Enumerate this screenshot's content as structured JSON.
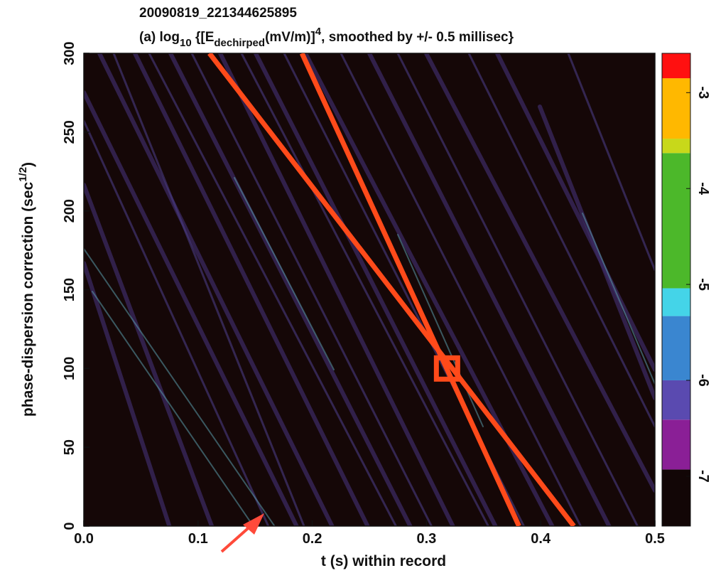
{
  "chart_data": {
    "type": "heatmap",
    "title": "20090819_221344625895",
    "subtitle_parts": [
      "(a) log",
      "10",
      " {[E",
      "dechirped",
      "(mV/m)]",
      "4",
      ", smoothed by +/- 0.5 millisec}"
    ],
    "x_label": "t (s) within record",
    "y_label_parts": [
      "phase-dispersion correction (sec",
      "1/2",
      ")"
    ],
    "xlim": [
      0,
      0.5
    ],
    "xticks": [
      {
        "value": 0,
        "label": "0.0"
      },
      0.1,
      0.2,
      0.3,
      0.4,
      0.5
    ],
    "ylim": [
      0,
      300
    ],
    "yticks": [
      0,
      50,
      100,
      150,
      200,
      250,
      300
    ],
    "overlays": [
      {
        "x": [
          0.11,
          0.429
        ],
        "y": [
          300,
          0
        ],
        "color": "#ff4a1a"
      },
      {
        "x": [
          0.191,
          0.381
        ],
        "y": [
          300,
          0
        ],
        "color": "#ff4a1a"
      }
    ],
    "marker": {
      "x": 0.318,
      "y": 100,
      "color": "#ff4a1a"
    },
    "colorbar": {
      "lim": [
        -7.52,
        -2.59
      ],
      "ticks": [
        -3,
        -4,
        -5,
        -6,
        -7
      ],
      "bands": [
        {
          "range": [
            -7.52,
            -6.93
          ],
          "color": "#120606"
        },
        {
          "range": [
            -6.93,
            -6.41
          ],
          "color": "#8a1f96"
        },
        {
          "range": [
            -6.41,
            -6.0
          ],
          "color": "#5a4ab0"
        },
        {
          "range": [
            -6.0,
            -5.33
          ],
          "color": "#3a86d0"
        },
        {
          "range": [
            -5.33,
            -5.04
          ],
          "color": "#44d4e8"
        },
        {
          "range": [
            -5.04,
            -3.63
          ],
          "color": "#4cb82a"
        },
        {
          "range": [
            -3.63,
            -3.48
          ],
          "color": "#c8d81a"
        },
        {
          "range": [
            -3.48,
            -2.85
          ],
          "color": "#ffb800"
        },
        {
          "range": [
            -2.85,
            -2.59
          ],
          "color": "#ff1010"
        }
      ]
    }
  }
}
